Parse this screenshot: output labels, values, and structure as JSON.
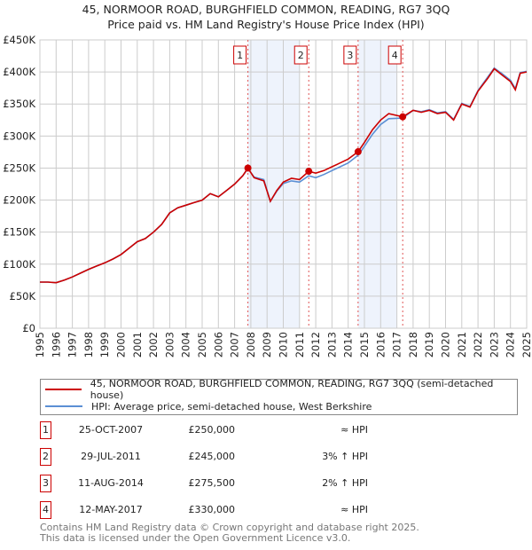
{
  "title": "45, NORMOOR ROAD, BURGHFIELD COMMON, READING, RG7 3QQ",
  "subtitle": "Price paid vs. HM Land Registry's House Price Index (HPI)",
  "chart_data": {
    "type": "line",
    "ylim": [
      0,
      450000
    ],
    "xlim": [
      1995,
      2025
    ],
    "y_ticks": [
      0,
      50000,
      100000,
      150000,
      200000,
      250000,
      300000,
      350000,
      400000,
      450000
    ],
    "y_tick_labels": [
      "£0",
      "£50K",
      "£100K",
      "£150K",
      "£200K",
      "£250K",
      "£300K",
      "£350K",
      "£400K",
      "£450K"
    ],
    "x_tick_labels": [
      "1995",
      "1996",
      "1997",
      "1998",
      "1999",
      "2000",
      "2001",
      "2002",
      "2003",
      "2004",
      "2005",
      "2006",
      "2007",
      "2008",
      "2009",
      "2010",
      "2011",
      "2012",
      "2013",
      "2014",
      "2015",
      "2016",
      "2017",
      "2018",
      "2019",
      "2020",
      "2021",
      "2022",
      "2023",
      "2024",
      "2025"
    ],
    "grid": true,
    "shaded_ranges": [
      [
        2007.82,
        2011.0
      ],
      [
        2014.6,
        2017.0
      ]
    ],
    "series": [
      {
        "name": "45, NORMOOR ROAD, BURGHFIELD COMMON, READING, RG7 3QQ (semi-detached house)",
        "color": "#cc0000",
        "x": [
          1995,
          1995.5,
          1996,
          1996.5,
          1997,
          1997.5,
          1998,
          1998.5,
          1999,
          1999.5,
          2000,
          2000.5,
          2001,
          2001.5,
          2002,
          2002.5,
          2003,
          2003.5,
          2004,
          2004.5,
          2005,
          2005.5,
          2006,
          2006.5,
          2007,
          2007.5,
          2007.82,
          2008.2,
          2008.8,
          2009.2,
          2009.6,
          2010,
          2010.5,
          2011,
          2011.57,
          2012,
          2012.5,
          2013,
          2013.5,
          2014,
          2014.61,
          2015,
          2015.5,
          2016,
          2016.5,
          2017.36,
          2018,
          2018.5,
          2019,
          2019.5,
          2020,
          2020.5,
          2021,
          2021.5,
          2022,
          2022.6,
          2023,
          2023.5,
          2024,
          2024.3,
          2024.6,
          2025
        ],
        "y": [
          72000,
          72000,
          71000,
          75000,
          80000,
          86000,
          92000,
          97000,
          102000,
          108000,
          115000,
          125000,
          135000,
          140000,
          150000,
          162000,
          180000,
          188000,
          192000,
          196000,
          200000,
          210000,
          205000,
          215000,
          225000,
          238000,
          250000,
          235000,
          230000,
          198000,
          215000,
          228000,
          234000,
          232000,
          245000,
          242000,
          246000,
          252000,
          258000,
          264000,
          275500,
          290000,
          310000,
          325000,
          335000,
          330000,
          340000,
          337000,
          340000,
          335000,
          337000,
          325000,
          350000,
          345000,
          370000,
          390000,
          405000,
          395000,
          385000,
          372000,
          398000,
          400000
        ]
      },
      {
        "name": "HPI: Average price, semi-detached house, West Berkshire",
        "color": "#5b8fd4",
        "x": [
          1995,
          1995.5,
          1996,
          1996.5,
          1997,
          1997.5,
          1998,
          1998.5,
          1999,
          1999.5,
          2000,
          2000.5,
          2001,
          2001.5,
          2002,
          2002.5,
          2003,
          2003.5,
          2004,
          2004.5,
          2005,
          2005.5,
          2006,
          2006.5,
          2007,
          2007.5,
          2007.82,
          2008.2,
          2008.8,
          2009.2,
          2009.6,
          2010,
          2010.5,
          2011,
          2011.57,
          2012,
          2012.5,
          2013,
          2013.5,
          2014,
          2014.61,
          2015,
          2015.5,
          2016,
          2016.5,
          2017.36,
          2018,
          2018.5,
          2019,
          2019.5,
          2020,
          2020.5,
          2021,
          2021.5,
          2022,
          2022.6,
          2023,
          2023.5,
          2024,
          2024.3,
          2024.6,
          2025
        ],
        "y": [
          72000,
          72000,
          71000,
          75000,
          80000,
          86000,
          92000,
          97000,
          102000,
          108000,
          115000,
          125000,
          135000,
          140000,
          150000,
          162000,
          180000,
          188000,
          192000,
          196000,
          200000,
          210000,
          205000,
          215000,
          225000,
          238000,
          249000,
          236000,
          232000,
          198000,
          214000,
          226000,
          230000,
          228000,
          238000,
          235000,
          240000,
          246000,
          252000,
          258000,
          270000,
          284000,
          303000,
          318000,
          327000,
          328000,
          340000,
          338000,
          341000,
          336000,
          338000,
          326000,
          351000,
          346000,
          371000,
          392000,
          406000,
          397000,
          387000,
          374000,
          399000,
          401000
        ]
      }
    ],
    "sales": [
      {
        "label": "1",
        "x": 2007.82,
        "y": 250000
      },
      {
        "label": "2",
        "x": 2011.57,
        "y": 245000
      },
      {
        "label": "3",
        "x": 2014.61,
        "y": 275500
      },
      {
        "label": "4",
        "x": 2017.36,
        "y": 330000
      }
    ]
  },
  "legend": {
    "red_label": "45, NORMOOR ROAD, BURGHFIELD COMMON, READING, RG7 3QQ (semi-detached house)",
    "blue_label": "HPI: Average price, semi-detached house, West Berkshire"
  },
  "transactions": [
    {
      "num": "1",
      "date": "25-OCT-2007",
      "price": "£250,000",
      "hpi": "≈ HPI"
    },
    {
      "num": "2",
      "date": "29-JUL-2011",
      "price": "£245,000",
      "hpi": "3% ↑ HPI"
    },
    {
      "num": "3",
      "date": "11-AUG-2014",
      "price": "£275,500",
      "hpi": "2% ↑ HPI"
    },
    {
      "num": "4",
      "date": "12-MAY-2017",
      "price": "£330,000",
      "hpi": "≈ HPI"
    }
  ],
  "footer": {
    "line1": "Contains HM Land Registry data © Crown copyright and database right 2025.",
    "line2": "This data is licensed under the Open Government Licence v3.0."
  }
}
